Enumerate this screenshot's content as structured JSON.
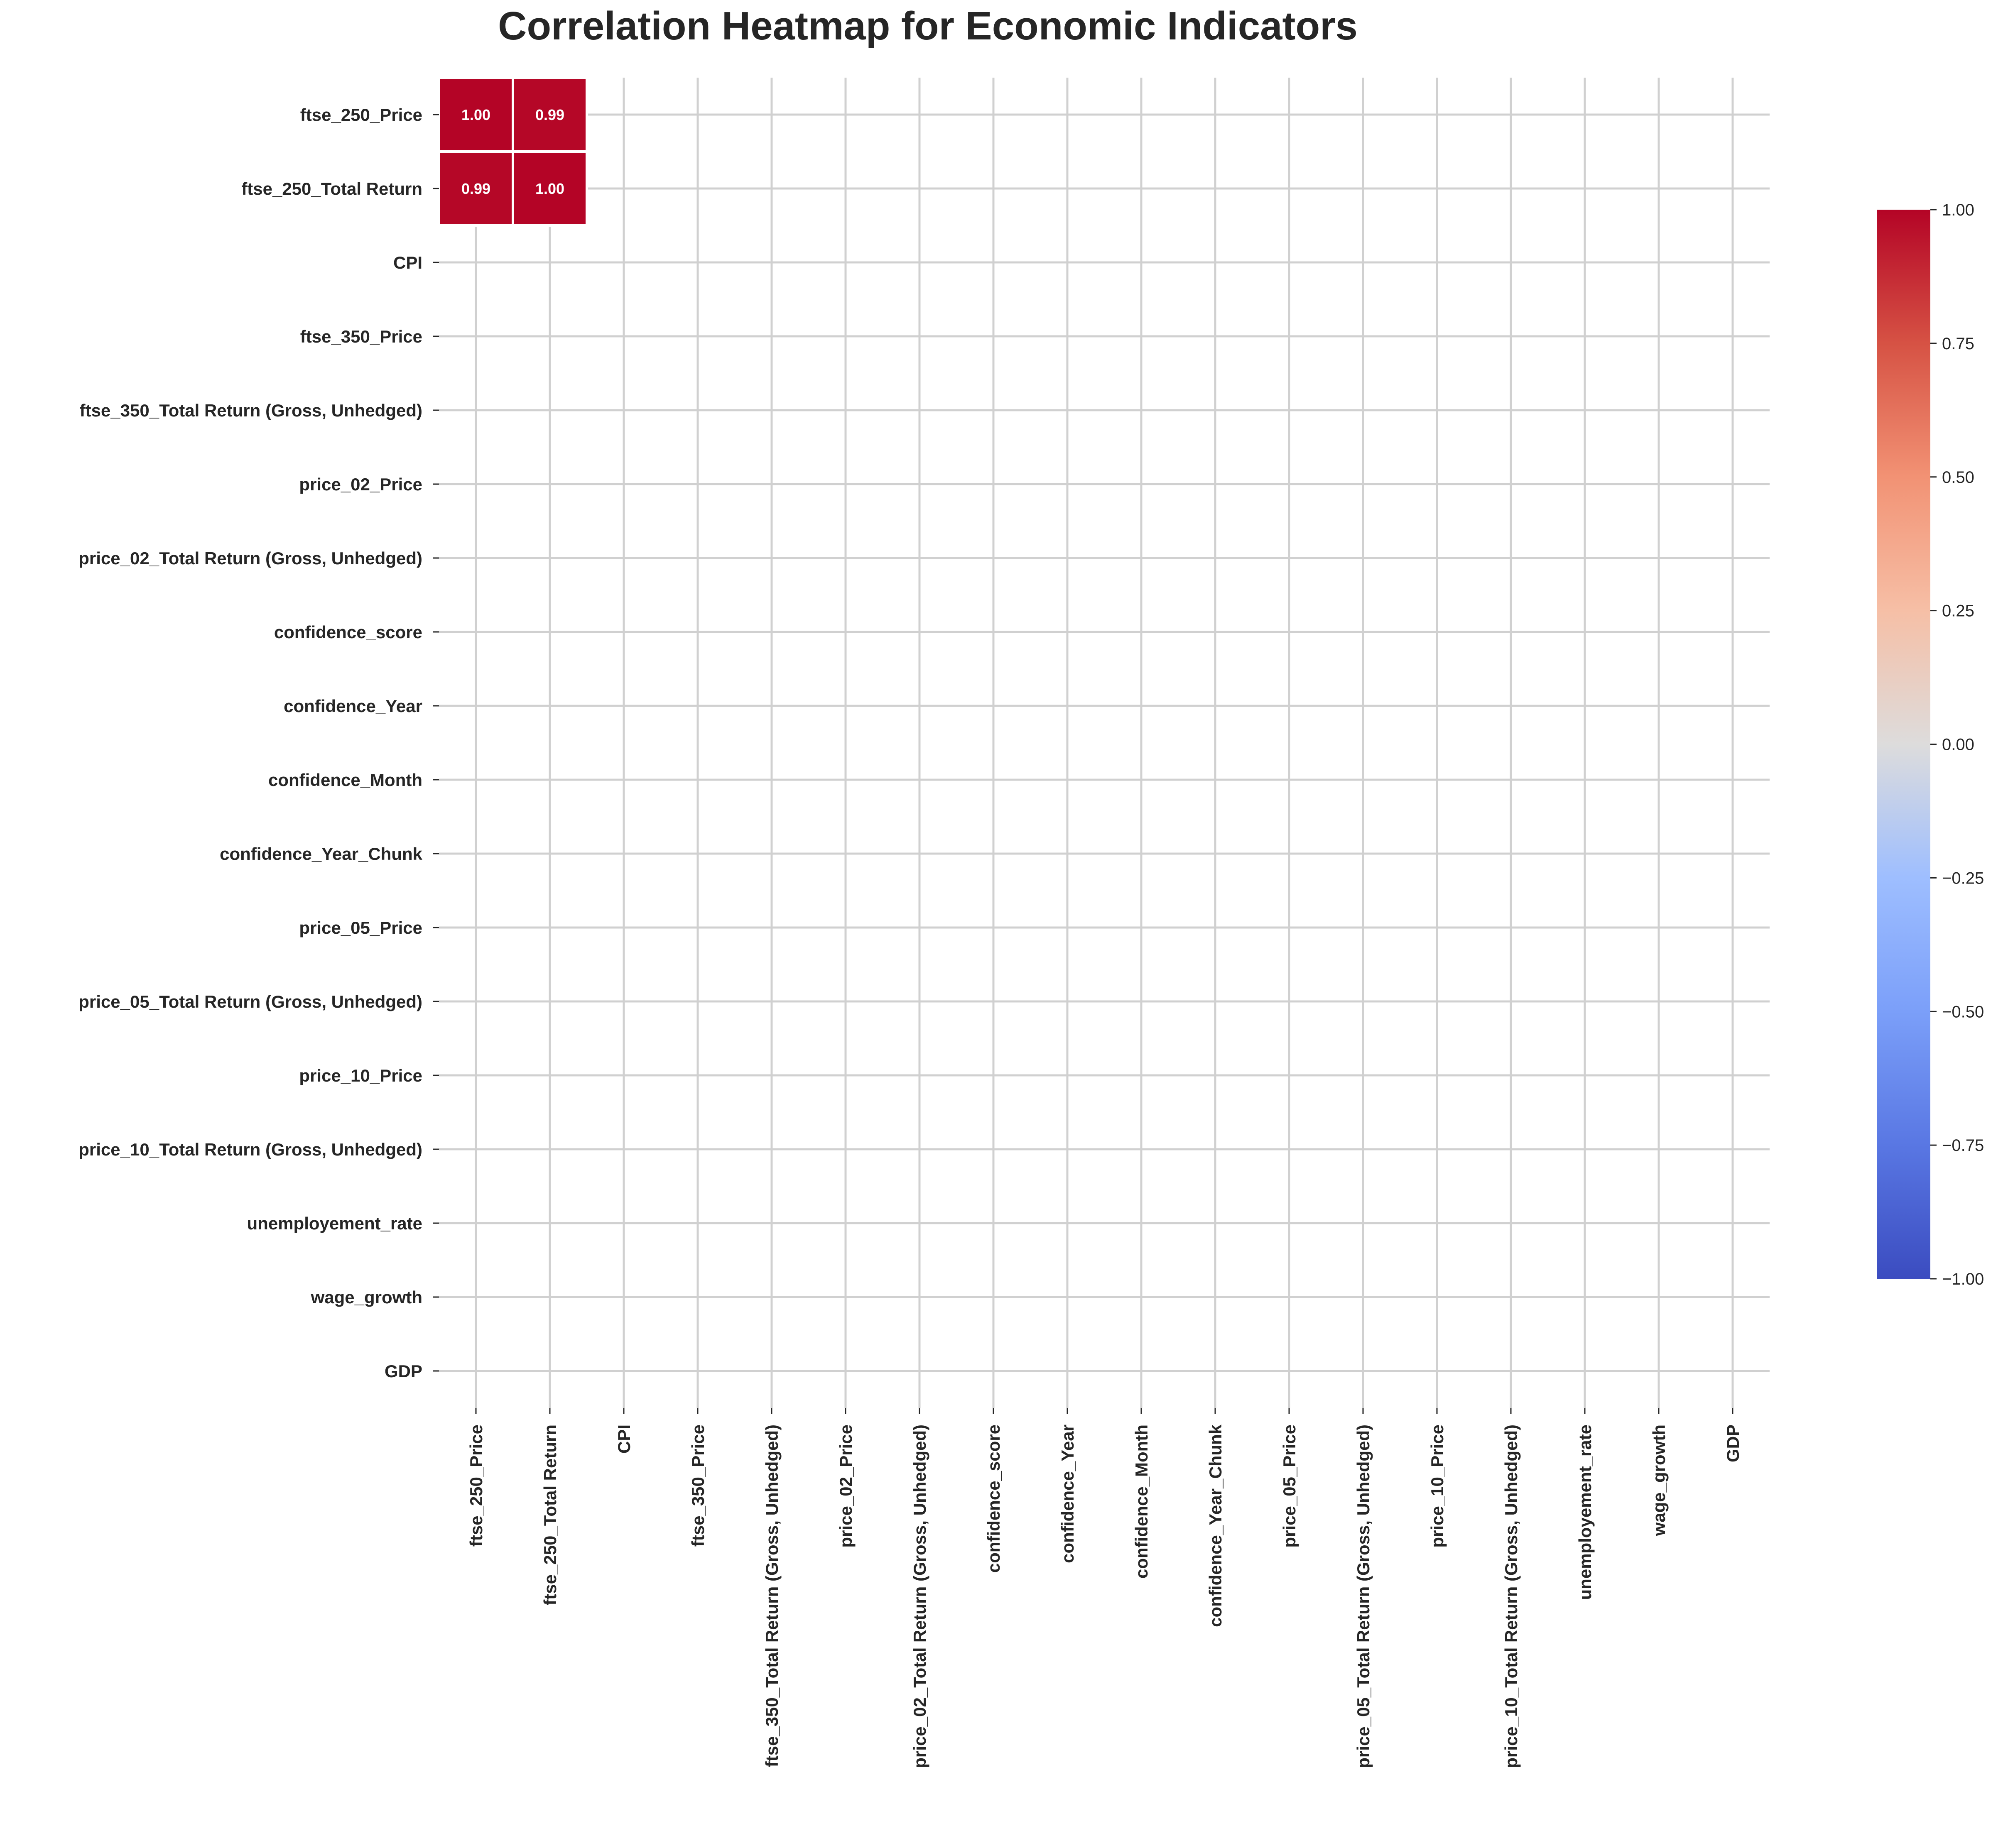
{
  "chart_data": {
    "type": "heatmap",
    "title": "Correlation Heatmap for Economic Indicators",
    "row_labels": [
      "ftse_250_Price",
      "ftse_250_Total Return",
      "CPI",
      "ftse_350_Price",
      "ftse_350_Total Return (Gross, Unhedged)",
      "price_02_Price",
      "price_02_Total Return (Gross, Unhedged)",
      "confidence_score",
      "confidence_Year",
      "confidence_Month",
      "confidence_Year_Chunk",
      "price_05_Price",
      "price_05_Total Return (Gross, Unhedged)",
      "price_10_Price",
      "price_10_Total Return (Gross, Unhedged)",
      "unemployement_rate",
      "wage_growth",
      "GDP"
    ],
    "col_labels": [
      "ftse_250_Price",
      "ftse_250_Total Return",
      "CPI",
      "ftse_350_Price",
      "ftse_350_Total Return (Gross, Unhedged)",
      "price_02_Price",
      "price_02_Total Return (Gross, Unhedged)",
      "confidence_score",
      "confidence_Year",
      "confidence_Month",
      "confidence_Year_Chunk",
      "price_05_Price",
      "price_05_Total Return (Gross, Unhedged)",
      "price_10_Price",
      "price_10_Total Return (Gross, Unhedged)",
      "unemployement_rate",
      "wage_growth",
      "GDP"
    ],
    "cells": [
      {
        "row": 0,
        "col": 0,
        "value": 1.0,
        "label": "1.00"
      },
      {
        "row": 0,
        "col": 1,
        "value": 0.99,
        "label": "0.99"
      },
      {
        "row": 1,
        "col": 0,
        "value": 0.99,
        "label": "0.99"
      },
      {
        "row": 1,
        "col": 1,
        "value": 1.0,
        "label": "1.00"
      }
    ],
    "colorbar": {
      "vmin": -1.0,
      "vmax": 1.0,
      "cmap": "coolwarm",
      "ticks": [
        "1.00",
        "0.75",
        "0.50",
        "0.25",
        "0.00",
        "−0.25",
        "−0.50",
        "−0.75",
        "−1.00"
      ],
      "tick_values": [
        1.0,
        0.75,
        0.5,
        0.25,
        0.0,
        -0.25,
        -0.5,
        -0.75,
        -1.0
      ]
    },
    "grid": true
  },
  "colors": {
    "grid": "#d0d0d0",
    "text": "#262626",
    "cell_border": "#ffffff"
  }
}
